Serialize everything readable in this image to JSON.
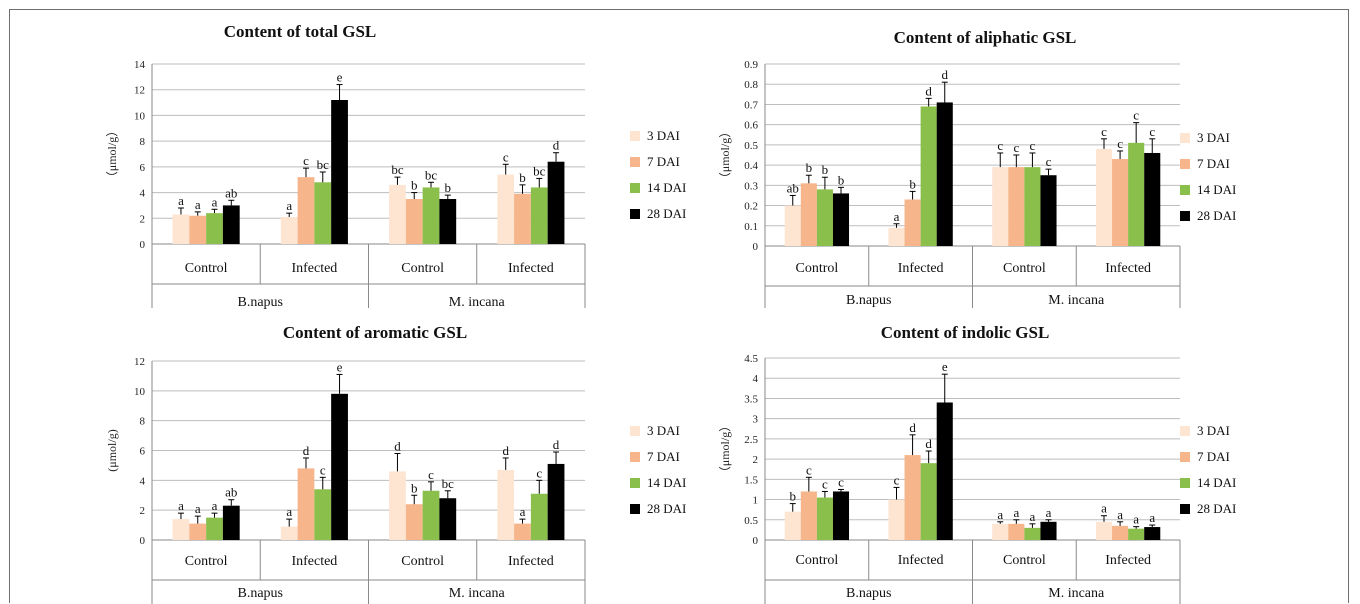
{
  "figure": {
    "legend_entries": [
      "3 DAI",
      "7 DAI",
      "14 DAI",
      "28 DAI"
    ],
    "colors": [
      "#fde5d2",
      "#f7b58b",
      "#8bbf4c",
      "#000000"
    ],
    "group_labels": [
      "Control",
      "Infected",
      "Control",
      "Infected"
    ],
    "species_labels": [
      "B.napus",
      "M. incana"
    ]
  },
  "chart_data": [
    {
      "type": "bar",
      "title": "Content of total GSL",
      "ylabel": "（μmol/g）",
      "ylim": [
        0,
        14
      ],
      "ystep": 2,
      "ytick_labels": [
        "0",
        "2",
        "4",
        "6",
        "8",
        "10",
        "12",
        "14"
      ],
      "categories": [
        "B.napus Control",
        "B.napus Infected",
        "M. incana Control",
        "M. incana Infected"
      ],
      "series": [
        {
          "name": "3 DAI",
          "values": [
            2.3,
            2.1,
            4.6,
            5.4
          ],
          "errors": [
            0.5,
            0.3,
            0.6,
            0.8
          ],
          "letters": [
            "a",
            "a",
            "bc",
            "c"
          ]
        },
        {
          "name": "7 DAI",
          "values": [
            2.2,
            5.2,
            3.5,
            3.9
          ],
          "errors": [
            0.3,
            0.7,
            0.5,
            0.7
          ],
          "letters": [
            "a",
            "c",
            "b",
            "b"
          ]
        },
        {
          "name": "14 DAI",
          "values": [
            2.4,
            4.8,
            4.4,
            4.4
          ],
          "errors": [
            0.3,
            0.8,
            0.4,
            0.7
          ],
          "letters": [
            "a",
            "bc",
            "bc",
            "bc"
          ]
        },
        {
          "name": "28 DAI",
          "values": [
            3.0,
            11.2,
            3.5,
            6.4
          ],
          "errors": [
            0.4,
            1.2,
            0.3,
            0.7
          ],
          "letters": [
            "ab",
            "e",
            "b",
            "d"
          ]
        }
      ]
    },
    {
      "type": "bar",
      "title": "Content of aliphatic GSL",
      "ylabel": "（μmol/g）",
      "ylim": [
        0,
        0.9
      ],
      "ystep": 0.1,
      "ytick_labels": [
        "0",
        "0.1",
        "0.2",
        "0.3",
        "0.4",
        "0.5",
        "0.6",
        "0.7",
        "0.8",
        "0.9"
      ],
      "categories": [
        "B.napus Control",
        "B.napus Infected",
        "M. incana Control",
        "M. incana Infected"
      ],
      "series": [
        {
          "name": "3 DAI",
          "values": [
            0.2,
            0.09,
            0.39,
            0.48
          ],
          "errors": [
            0.05,
            0.02,
            0.07,
            0.05
          ],
          "letters": [
            "ab",
            "a",
            "c",
            "c"
          ]
        },
        {
          "name": "7 DAI",
          "values": [
            0.31,
            0.23,
            0.39,
            0.43
          ],
          "errors": [
            0.04,
            0.04,
            0.06,
            0.04
          ],
          "letters": [
            "b",
            "b",
            "c",
            "c"
          ]
        },
        {
          "name": "14 DAI",
          "values": [
            0.28,
            0.69,
            0.39,
            0.51
          ],
          "errors": [
            0.06,
            0.04,
            0.07,
            0.1
          ],
          "letters": [
            "b",
            "d",
            "c",
            "c"
          ]
        },
        {
          "name": "28 DAI",
          "values": [
            0.26,
            0.71,
            0.35,
            0.46
          ],
          "errors": [
            0.03,
            0.1,
            0.03,
            0.07
          ],
          "letters": [
            "b",
            "d",
            "c",
            "c"
          ]
        }
      ]
    },
    {
      "type": "bar",
      "title": "Content of aromatic GSL",
      "ylabel": "(μmol/g)",
      "ylim": [
        0,
        12
      ],
      "ystep": 2,
      "ytick_labels": [
        "0",
        "2",
        "4",
        "6",
        "8",
        "10",
        "12"
      ],
      "categories": [
        "B.napus Control",
        "B.napus Infected",
        "M. incana Control",
        "M. incana Infected"
      ],
      "series": [
        {
          "name": "3 DAI",
          "values": [
            1.4,
            0.9,
            4.6,
            4.7
          ],
          "errors": [
            0.4,
            0.5,
            1.2,
            0.8
          ],
          "letters": [
            "a",
            "a",
            "d",
            "d"
          ]
        },
        {
          "name": "7 DAI",
          "values": [
            1.1,
            4.8,
            2.4,
            1.1
          ],
          "errors": [
            0.5,
            0.7,
            0.6,
            0.3
          ],
          "letters": [
            "a",
            "d",
            "b",
            "a"
          ]
        },
        {
          "name": "14 DAI",
          "values": [
            1.5,
            3.4,
            3.3,
            3.1
          ],
          "errors": [
            0.3,
            0.8,
            0.6,
            0.9
          ],
          "letters": [
            "a",
            "c",
            "c",
            "c"
          ]
        },
        {
          "name": "28 DAI",
          "values": [
            2.3,
            9.8,
            2.8,
            5.1
          ],
          "errors": [
            0.4,
            1.3,
            0.5,
            0.8
          ],
          "letters": [
            "ab",
            "e",
            "bc",
            "d"
          ]
        }
      ]
    },
    {
      "type": "bar",
      "title": "Content of indolic GSL",
      "ylabel": "（μmol/g）",
      "ylim": [
        0,
        4.5
      ],
      "ystep": 0.5,
      "ytick_labels": [
        "0",
        "0.5",
        "1",
        "1.5",
        "2",
        "2.5",
        "3",
        "3.5",
        "4",
        "4.5"
      ],
      "categories": [
        "B.napus Control",
        "B.napus Infected",
        "M. incana Control",
        "M. incana Infected"
      ],
      "series": [
        {
          "name": "3 DAI",
          "values": [
            0.7,
            1.0,
            0.4,
            0.45
          ],
          "errors": [
            0.2,
            0.3,
            0.05,
            0.15
          ],
          "letters": [
            "b",
            "c",
            "a",
            "a"
          ]
        },
        {
          "name": "7 DAI",
          "values": [
            1.2,
            2.1,
            0.4,
            0.35
          ],
          "errors": [
            0.35,
            0.5,
            0.1,
            0.1
          ],
          "letters": [
            "c",
            "d",
            "a",
            "a"
          ]
        },
        {
          "name": "14 DAI",
          "values": [
            1.05,
            1.9,
            0.3,
            0.28
          ],
          "errors": [
            0.15,
            0.3,
            0.1,
            0.05
          ],
          "letters": [
            "c",
            "d",
            "a",
            "a"
          ]
        },
        {
          "name": "28 DAI",
          "values": [
            1.2,
            3.4,
            0.45,
            0.32
          ],
          "errors": [
            0.05,
            0.7,
            0.05,
            0.05
          ],
          "letters": [
            "c",
            "e",
            "a",
            "a"
          ]
        }
      ]
    }
  ]
}
